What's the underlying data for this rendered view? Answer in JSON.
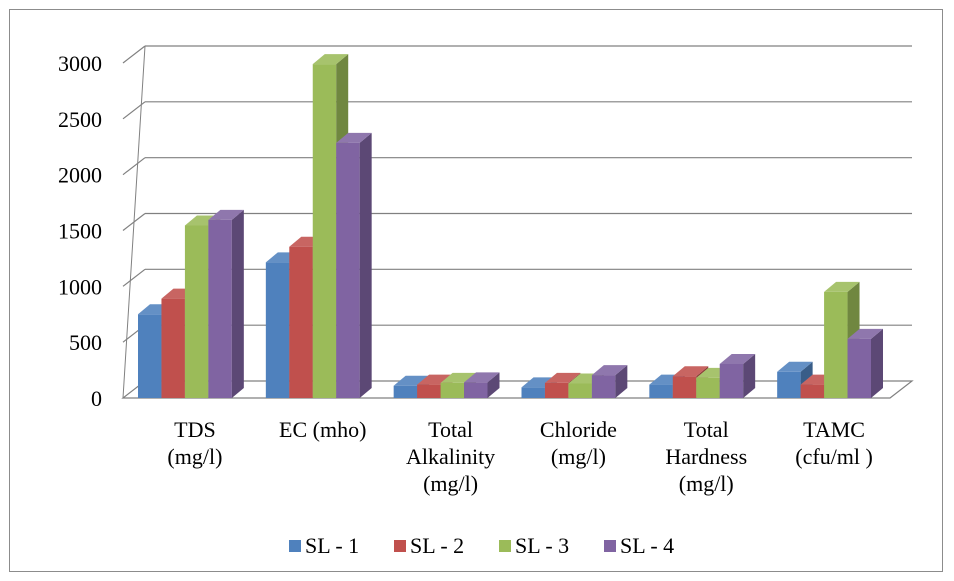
{
  "chart_data": {
    "type": "bar",
    "style": "3d-clustered-column",
    "categories": [
      [
        "TDS",
        "(mg/l)"
      ],
      [
        "EC (mho)"
      ],
      [
        "Total",
        "Alkalinity",
        "(mg/l)"
      ],
      [
        "Chloride",
        "(mg/l)"
      ],
      [
        "Total",
        "Hardness",
        "(mg/l)"
      ],
      [
        "TAMC",
        "(cfu/ml )"
      ]
    ],
    "series": [
      {
        "name": "SL - 1",
        "color": "#4f81bd",
        "values": [
          750,
          1215,
          110,
          95,
          120,
          235
        ]
      },
      {
        "name": "SL - 2",
        "color": "#c0504d",
        "values": [
          890,
          1355,
          120,
          135,
          195,
          120
        ]
      },
      {
        "name": "SL - 3",
        "color": "#9bbb59",
        "values": [
          1545,
          2990,
          135,
          130,
          180,
          950
        ]
      },
      {
        "name": "SL - 4",
        "color": "#8064a2",
        "values": [
          1595,
          2285,
          140,
          205,
          305,
          530
        ]
      }
    ],
    "yticks": [
      0,
      500,
      1000,
      1500,
      2000,
      2500,
      3000
    ],
    "ylim": [
      0,
      3000
    ],
    "grid": true,
    "legend": "bottom"
  }
}
